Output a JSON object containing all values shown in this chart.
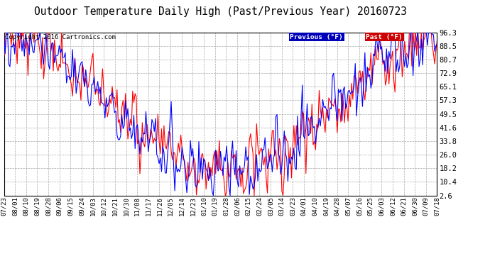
{
  "title": "Outdoor Temperature Daily High (Past/Previous Year) 20160723",
  "copyright": "Copyright 2016 Cartronics.com",
  "legend": [
    {
      "label": "Previous (°F)",
      "color": "#0000ff",
      "bg": "#0000bb"
    },
    {
      "label": "Past (°F)",
      "color": "#ff0000",
      "bg": "#cc0000"
    }
  ],
  "yticks": [
    2.6,
    10.4,
    18.2,
    26.0,
    33.8,
    41.6,
    49.5,
    57.3,
    65.1,
    72.9,
    80.7,
    88.5,
    96.3
  ],
  "ylim": [
    2.6,
    96.3
  ],
  "bg_color": "#ffffff",
  "grid_color": "#aaaaaa",
  "title_fontsize": 10.5,
  "copyright_fontsize": 6.5,
  "tick_fontsize": 7,
  "line_width": 0.8,
  "x_labels": [
    "07/23",
    "08/01",
    "08/10",
    "08/19",
    "08/28",
    "09/06",
    "09/15",
    "09/24",
    "10/03",
    "10/12",
    "10/21",
    "10/30",
    "11/08",
    "11/17",
    "11/26",
    "12/05",
    "12/14",
    "12/23",
    "01/10",
    "01/19",
    "01/28",
    "02/06",
    "02/15",
    "02/24",
    "03/05",
    "03/14",
    "03/23",
    "04/01",
    "04/10",
    "04/19",
    "04/28",
    "05/07",
    "05/16",
    "05/25",
    "06/03",
    "06/12",
    "06/21",
    "06/30",
    "07/09",
    "07/18"
  ]
}
